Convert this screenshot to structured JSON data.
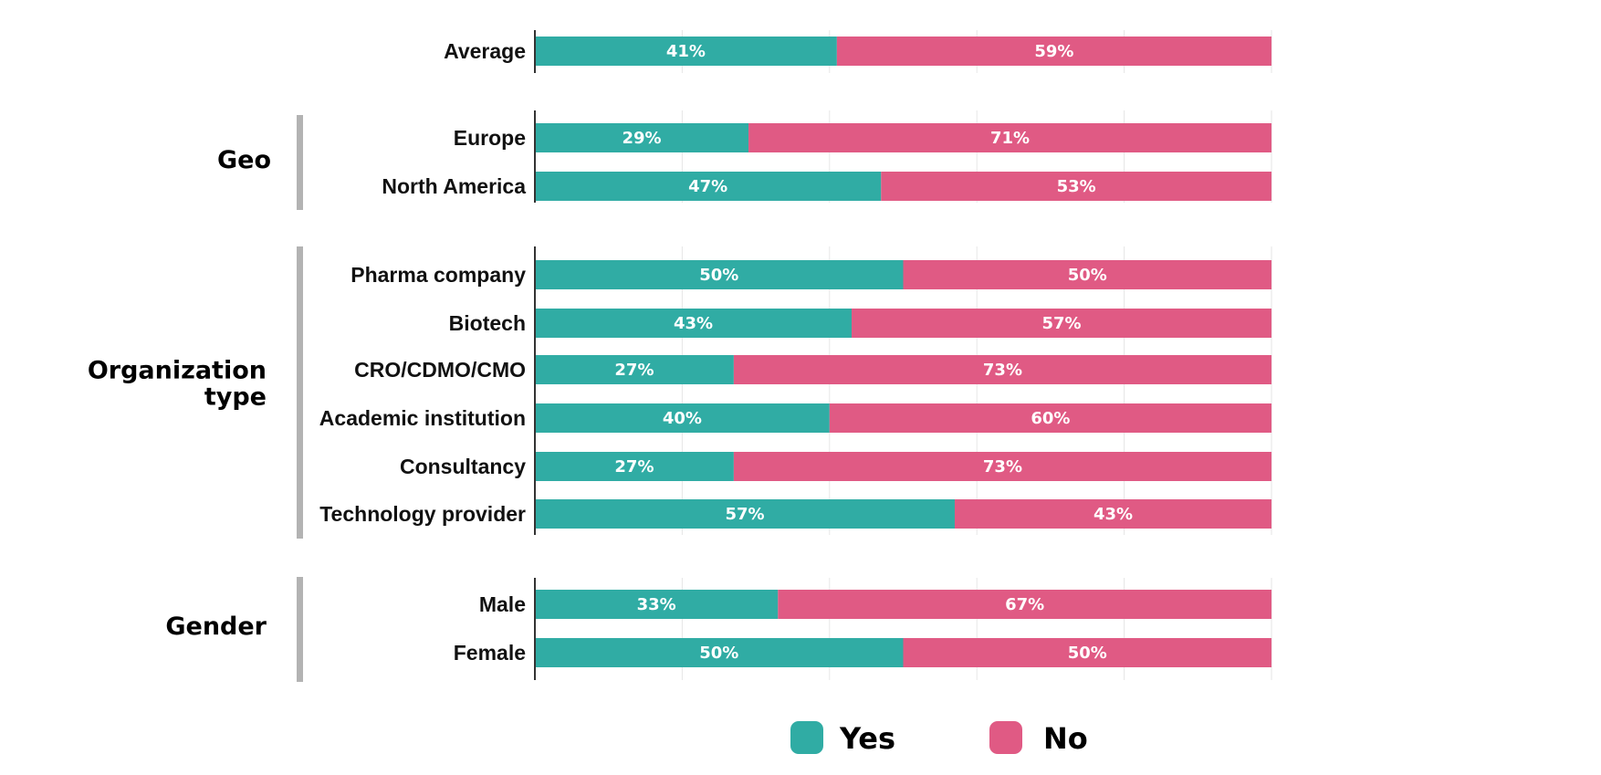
{
  "chart_data": {
    "type": "bar",
    "orientation": "horizontal",
    "stacked": true,
    "xlim": [
      0,
      100
    ],
    "grid": true,
    "legend_placement": "bottom",
    "series": [
      {
        "name": "Yes",
        "color": "#30aca4"
      },
      {
        "name": "No",
        "color": "#e05a84"
      }
    ],
    "groups": [
      {
        "label": "",
        "rows": [
          {
            "category": "Average",
            "yes": 41,
            "no": 59,
            "yes_label": "41%",
            "no_label": "59%"
          }
        ]
      },
      {
        "label": "Geo",
        "rows": [
          {
            "category": "Europe",
            "yes": 29,
            "no": 71,
            "yes_label": "29%",
            "no_label": "71%"
          },
          {
            "category": "North America",
            "yes": 47,
            "no": 53,
            "yes_label": "47%",
            "no_label": "53%"
          }
        ]
      },
      {
        "label": "Organization type",
        "label_lines": [
          "Organization",
          "type"
        ],
        "rows": [
          {
            "category": "Pharma company",
            "yes": 50,
            "no": 50,
            "yes_label": "50%",
            "no_label": "50%"
          },
          {
            "category": "Biotech",
            "yes": 43,
            "no": 57,
            "yes_label": "43%",
            "no_label": "57%"
          },
          {
            "category": "CRO/CDMO/CMO",
            "yes": 27,
            "no": 73,
            "yes_label": "27%",
            "no_label": "73%"
          },
          {
            "category": "Academic institution",
            "yes": 40,
            "no": 60,
            "yes_label": "40%",
            "no_label": "60%"
          },
          {
            "category": "Consultancy",
            "yes": 27,
            "no": 73,
            "yes_label": "27%",
            "no_label": "73%"
          },
          {
            "category": "Technology provider",
            "yes": 57,
            "no": 43,
            "yes_label": "57%",
            "no_label": "43%"
          }
        ]
      },
      {
        "label": "Gender",
        "rows": [
          {
            "category": "Male",
            "yes": 33,
            "no": 67,
            "yes_label": "33%",
            "no_label": "67%"
          },
          {
            "category": "Female",
            "yes": 50,
            "no": 50,
            "yes_label": "50%",
            "no_label": "50%"
          }
        ]
      }
    ]
  }
}
